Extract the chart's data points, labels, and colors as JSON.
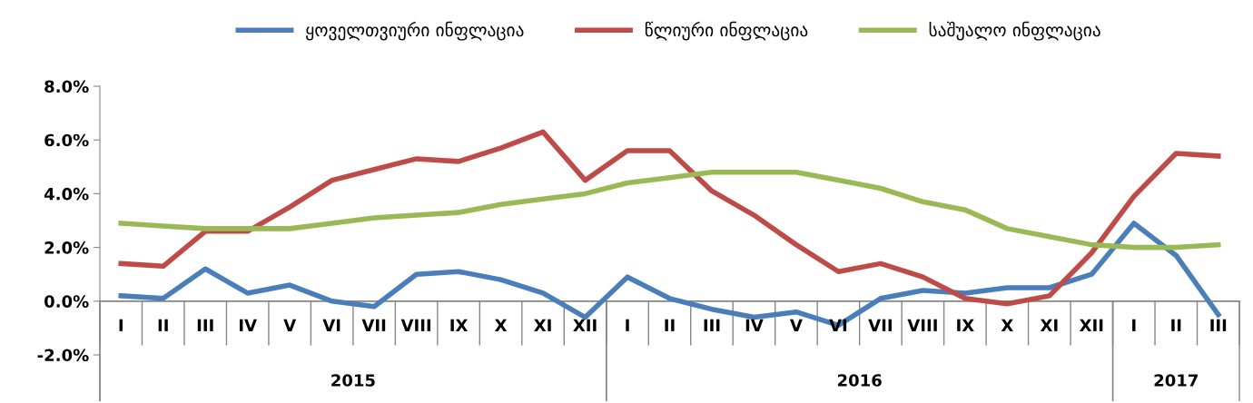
{
  "chart_data": {
    "type": "line",
    "categories": [
      "I",
      "II",
      "III",
      "IV",
      "V",
      "VI",
      "VII",
      "VIII",
      "IX",
      "X",
      "XI",
      "XII",
      "I",
      "II",
      "III",
      "IV",
      "V",
      "VI",
      "VII",
      "VIII",
      "IX",
      "X",
      "XI",
      "XII",
      "I",
      "II",
      "III"
    ],
    "series": [
      {
        "name": "ყოველთვიური ინფლაცია",
        "color": "#4a7ebb",
        "values": [
          0.2,
          0.1,
          1.2,
          0.3,
          0.6,
          0.0,
          -0.2,
          1.0,
          1.1,
          0.8,
          0.3,
          -0.6,
          0.9,
          0.1,
          -0.3,
          -0.6,
          -0.4,
          -0.9,
          0.1,
          0.4,
          0.3,
          0.5,
          0.5,
          1.0,
          2.9,
          1.7,
          -0.5
        ]
      },
      {
        "name": "წლიური ინფლაცია",
        "color": "#be4b48",
        "values": [
          1.4,
          1.3,
          2.6,
          2.6,
          3.5,
          4.5,
          4.9,
          5.3,
          5.2,
          5.7,
          6.3,
          4.5,
          5.6,
          5.6,
          4.1,
          3.2,
          2.1,
          1.1,
          1.4,
          0.9,
          0.1,
          -0.1,
          0.2,
          1.8,
          3.9,
          5.5,
          5.4
        ]
      },
      {
        "name": "საშუალო ინფლაცია",
        "color": "#98b954",
        "values": [
          2.9,
          2.8,
          2.7,
          2.7,
          2.7,
          2.9,
          3.1,
          3.2,
          3.3,
          3.6,
          3.8,
          4.0,
          4.4,
          4.6,
          4.8,
          4.8,
          4.8,
          4.5,
          4.2,
          3.7,
          3.4,
          2.7,
          2.4,
          2.1,
          2.0,
          2.0,
          2.1
        ]
      }
    ],
    "annotations": [
      "2015",
      "2016",
      "2017"
    ],
    "ylim": [
      -2,
      8
    ],
    "yticks": [
      {
        "value": -2,
        "label": "-2.0%"
      },
      {
        "value": 0,
        "label": "0.0%"
      },
      {
        "value": 2,
        "label": "2.0%"
      },
      {
        "value": 4,
        "label": "4.0%"
      },
      {
        "value": 6,
        "label": "6.0%"
      },
      {
        "value": 8,
        "label": "8.0%"
      }
    ],
    "grid": false,
    "legend": "top",
    "marker": "none",
    "line_style": "solid"
  }
}
